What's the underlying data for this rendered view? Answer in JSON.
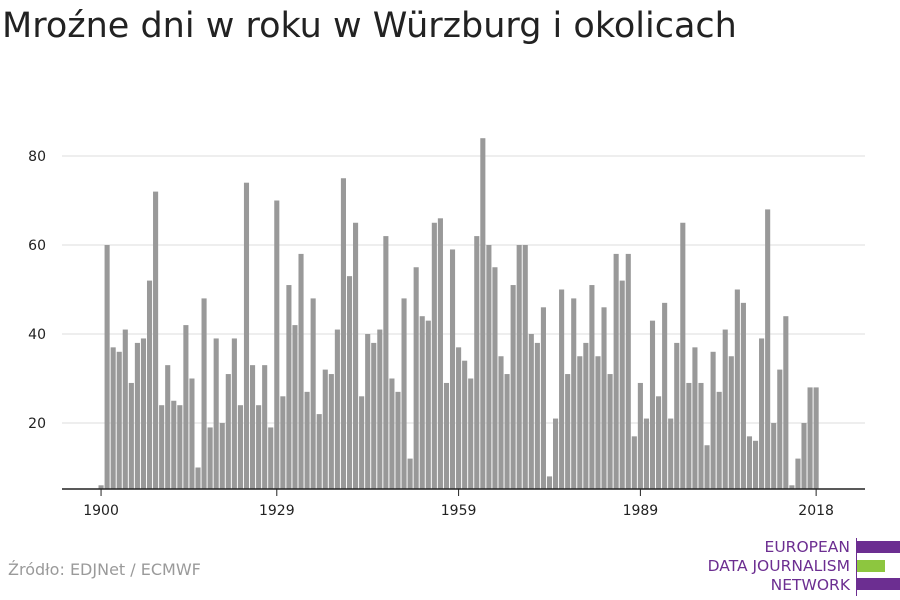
{
  "title": "Mroźne dni w roku w Würzburg i okolicach",
  "source": "Źródło: EDJNet / ECMWF",
  "logo": {
    "lines": [
      "EUROPEAN",
      "DATA JOURNALISM",
      "NETWORK"
    ],
    "colors": {
      "purple": "#6c2e91",
      "green": "#8dc63f"
    }
  },
  "colors": {
    "bar": "#999999",
    "grid": "#dddddd",
    "axis": "#222222"
  },
  "chart_data": {
    "type": "bar",
    "title": "Mroźne dni w roku w Würzburg i okolicach",
    "xlabel": "",
    "ylabel": "",
    "x_ticks": [
      1900,
      1929,
      1959,
      1989,
      2018
    ],
    "y_ticks": [
      20,
      40,
      60,
      80
    ],
    "ylim": [
      5,
      85
    ],
    "grid": true,
    "categories": [
      1900,
      1901,
      1902,
      1903,
      1904,
      1905,
      1906,
      1907,
      1908,
      1909,
      1910,
      1911,
      1912,
      1913,
      1914,
      1915,
      1916,
      1917,
      1918,
      1919,
      1920,
      1921,
      1922,
      1923,
      1924,
      1925,
      1926,
      1927,
      1928,
      1929,
      1930,
      1931,
      1932,
      1933,
      1934,
      1935,
      1936,
      1937,
      1938,
      1939,
      1940,
      1941,
      1942,
      1943,
      1944,
      1945,
      1946,
      1947,
      1948,
      1949,
      1950,
      1951,
      1952,
      1953,
      1954,
      1955,
      1956,
      1957,
      1958,
      1959,
      1960,
      1961,
      1962,
      1963,
      1964,
      1965,
      1966,
      1967,
      1968,
      1969,
      1970,
      1971,
      1972,
      1973,
      1974,
      1975,
      1976,
      1977,
      1978,
      1979,
      1980,
      1981,
      1982,
      1983,
      1984,
      1985,
      1986,
      1987,
      1988,
      1989,
      1990,
      1991,
      1992,
      1993,
      1994,
      1995,
      1996,
      1997,
      1998,
      1999,
      2000,
      2001,
      2002,
      2003,
      2004,
      2005,
      2006,
      2007,
      2008,
      2009,
      2010,
      2011,
      2012,
      2013,
      2014,
      2015,
      2016,
      2017,
      2018
    ],
    "values": [
      6,
      60,
      37,
      36,
      41,
      29,
      38,
      39,
      52,
      72,
      24,
      33,
      25,
      24,
      42,
      30,
      10,
      48,
      19,
      39,
      20,
      31,
      39,
      24,
      74,
      33,
      24,
      33,
      19,
      70,
      26,
      51,
      42,
      58,
      27,
      48,
      22,
      32,
      31,
      41,
      75,
      53,
      65,
      26,
      40,
      38,
      41,
      62,
      30,
      27,
      48,
      12,
      55,
      44,
      43,
      65,
      66,
      29,
      59,
      37,
      34,
      30,
      62,
      84,
      60,
      55,
      35,
      31,
      51,
      60,
      60,
      40,
      38,
      46,
      8,
      21,
      50,
      31,
      48,
      35,
      38,
      51,
      35,
      46,
      31,
      58,
      52,
      58,
      17,
      29,
      21,
      43,
      26,
      47,
      21,
      38,
      65,
      29,
      37,
      29,
      15,
      36,
      27,
      41,
      35,
      50,
      47,
      17,
      16,
      39,
      68,
      20,
      32,
      44,
      6,
      12,
      20,
      28,
      28
    ]
  }
}
